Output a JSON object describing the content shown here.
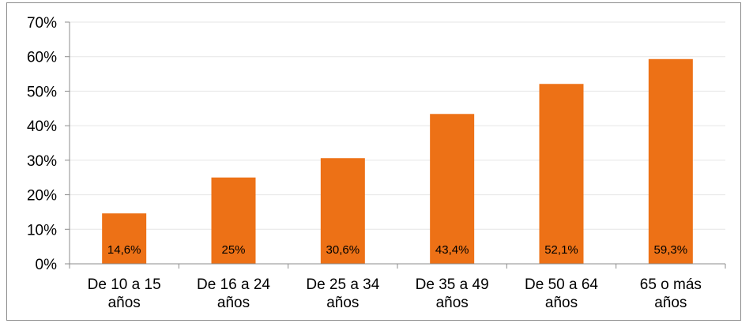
{
  "chart_data": {
    "type": "bar",
    "categories": [
      [
        "De 10 a 15",
        "años"
      ],
      [
        "De 16 a 24",
        "años"
      ],
      [
        "De 25 a 34",
        "años"
      ],
      [
        "De 35 a 49",
        "años"
      ],
      [
        "De 50 a 64",
        "años"
      ],
      [
        "65 o más",
        "años"
      ]
    ],
    "values": [
      14.6,
      25,
      30.6,
      43.4,
      52.1,
      59.3
    ],
    "data_labels": [
      "14,6%",
      "25%",
      "30,6%",
      "43,4%",
      "52,1%",
      "59,3%"
    ],
    "title": "",
    "xlabel": "",
    "ylabel": "",
    "ylim": [
      0,
      70
    ],
    "yticks": [
      0,
      10,
      20,
      30,
      40,
      50,
      60,
      70
    ],
    "ytick_labels": [
      "0%",
      "10%",
      "20%",
      "30%",
      "40%",
      "50%",
      "60%",
      "70%"
    ],
    "grid": true,
    "legend": "none",
    "colors": {
      "bar": "#ed7116",
      "grid": "#e6e6e6",
      "axis": "#8c8c8c"
    }
  }
}
